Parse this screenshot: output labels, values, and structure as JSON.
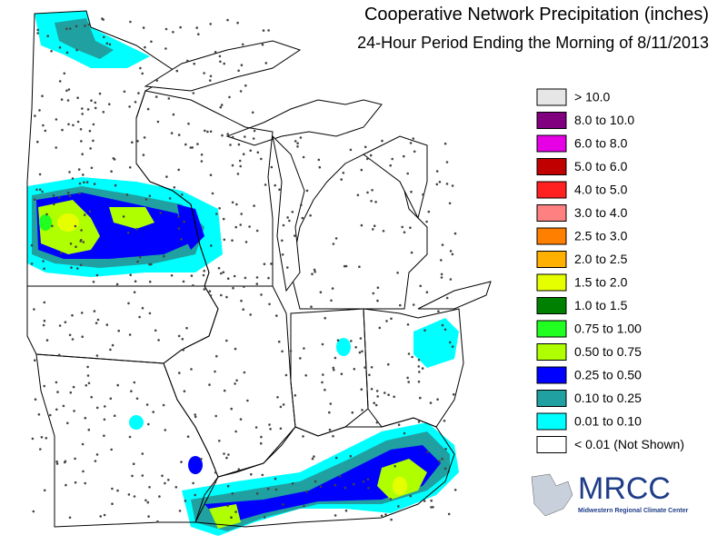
{
  "header": {
    "title": "Cooperative Network Precipitation (inches)",
    "subtitle": "24-Hour Period Ending the Morning of 8/11/2013"
  },
  "legend": {
    "items": [
      {
        "label": "> 10.0",
        "color": "#e6e6e6"
      },
      {
        "label": "8.0 to 10.0",
        "color": "#800080"
      },
      {
        "label": "6.0 to 8.0",
        "color": "#e600e6"
      },
      {
        "label": "5.0 to 6.0",
        "color": "#c00000"
      },
      {
        "label": "4.0 to 5.0",
        "color": "#ff2020"
      },
      {
        "label": "3.0 to 4.0",
        "color": "#ff8080"
      },
      {
        "label": "2.5 to 3.0",
        "color": "#ff8000"
      },
      {
        "label": "2.0 to 2.5",
        "color": "#ffb000"
      },
      {
        "label": "1.5 to 2.0",
        "color": "#e6ff00"
      },
      {
        "label": "1.0 to 1.5",
        "color": "#008000"
      },
      {
        "label": "0.75 to 1.00",
        "color": "#20ff20"
      },
      {
        "label": "0.50 to 0.75",
        "color": "#b0ff00"
      },
      {
        "label": "0.25 to 0.50",
        "color": "#0000ff"
      },
      {
        "label": "0.10 to 0.25",
        "color": "#20a0a0"
      },
      {
        "label": "0.01 to 0.10",
        "color": "#00ffff"
      },
      {
        "label": "< 0.01 (Not Shown)",
        "color": "#ffffff"
      }
    ]
  },
  "logo": {
    "title": "MRCC",
    "subtitle": "Midwestern Regional Climate Center"
  }
}
